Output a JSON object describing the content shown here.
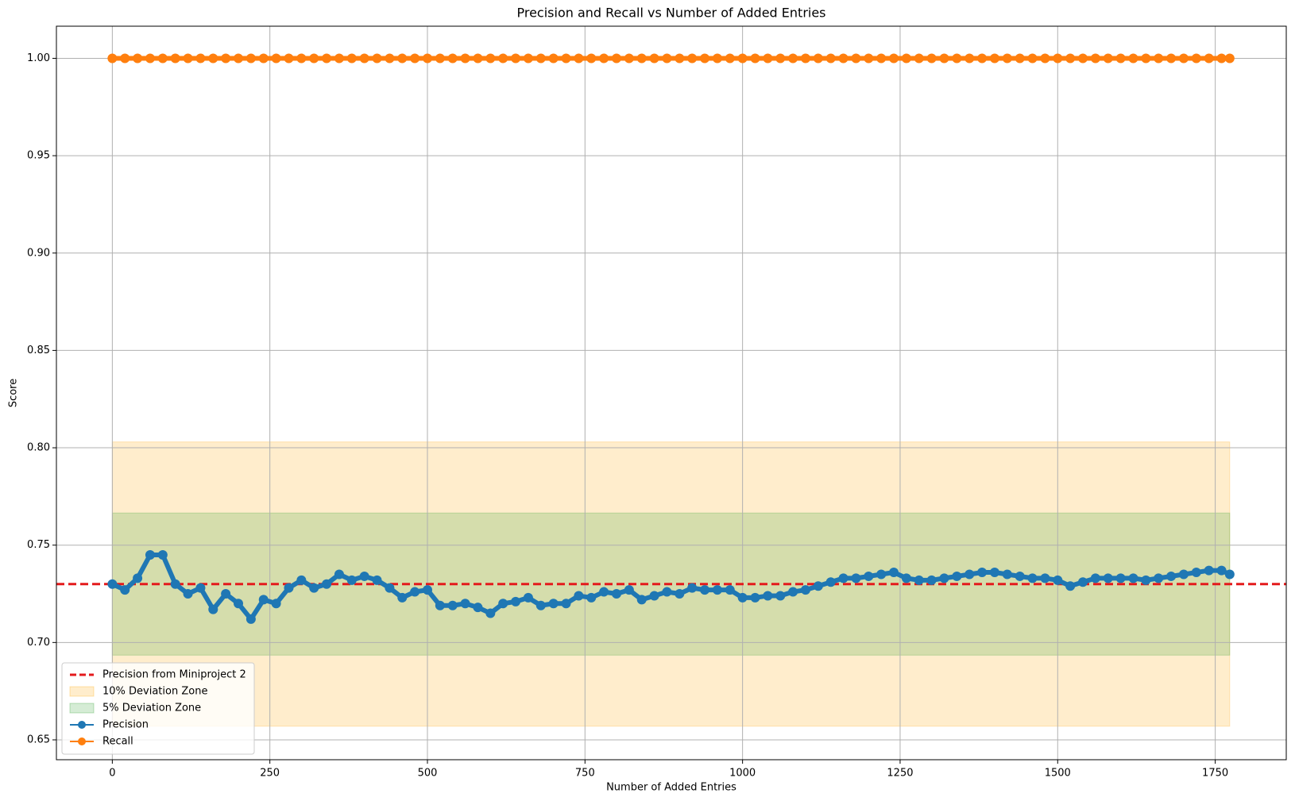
{
  "chart_data": {
    "type": "line",
    "title": "Precision and Recall vs Number of Added Entries",
    "x_label": "Number of Added Entries",
    "y_label": "Score",
    "x": [
      0,
      20,
      40,
      60,
      80,
      100,
      120,
      140,
      160,
      180,
      200,
      220,
      240,
      260,
      280,
      300,
      320,
      340,
      360,
      380,
      400,
      420,
      440,
      460,
      480,
      500,
      520,
      540,
      560,
      580,
      600,
      620,
      640,
      660,
      680,
      700,
      720,
      740,
      760,
      780,
      800,
      820,
      840,
      860,
      880,
      900,
      920,
      940,
      960,
      980,
      1000,
      1020,
      1040,
      1060,
      1080,
      1100,
      1120,
      1140,
      1160,
      1180,
      1200,
      1220,
      1240,
      1260,
      1280,
      1300,
      1320,
      1340,
      1360,
      1380,
      1400,
      1420,
      1440,
      1460,
      1480,
      1500,
      1520,
      1540,
      1560,
      1580,
      1600,
      1620,
      1640,
      1660,
      1680,
      1700,
      1720,
      1740,
      1760,
      1773
    ],
    "series": [
      {
        "name": "Precision",
        "color": "#1f77b4",
        "values": [
          0.73,
          0.727,
          0.733,
          0.745,
          0.745,
          0.73,
          0.725,
          0.728,
          0.717,
          0.725,
          0.72,
          0.712,
          0.722,
          0.72,
          0.728,
          0.732,
          0.728,
          0.73,
          0.735,
          0.732,
          0.734,
          0.732,
          0.728,
          0.723,
          0.726,
          0.727,
          0.719,
          0.719,
          0.72,
          0.718,
          0.715,
          0.72,
          0.721,
          0.723,
          0.719,
          0.72,
          0.72,
          0.724,
          0.723,
          0.726,
          0.725,
          0.727,
          0.722,
          0.724,
          0.726,
          0.725,
          0.728,
          0.727,
          0.727,
          0.727,
          0.723,
          0.723,
          0.724,
          0.724,
          0.726,
          0.727,
          0.729,
          0.731,
          0.733,
          0.733,
          0.734,
          0.735,
          0.736,
          0.733,
          0.732,
          0.732,
          0.733,
          0.734,
          0.735,
          0.736,
          0.736,
          0.735,
          0.734,
          0.733,
          0.733,
          0.732,
          0.729,
          0.731,
          0.733,
          0.733,
          0.733,
          0.733,
          0.732,
          0.733,
          0.734,
          0.735,
          0.736,
          0.737,
          0.737,
          0.735
        ]
      },
      {
        "name": "Recall",
        "color": "#ff7f0e",
        "values": [
          1,
          1,
          1,
          1,
          1,
          1,
          1,
          1,
          1,
          1,
          1,
          1,
          1,
          1,
          1,
          1,
          1,
          1,
          1,
          1,
          1,
          1,
          1,
          1,
          1,
          1,
          1,
          1,
          1,
          1,
          1,
          1,
          1,
          1,
          1,
          1,
          1,
          1,
          1,
          1,
          1,
          1,
          1,
          1,
          1,
          1,
          1,
          1,
          1,
          1,
          1,
          1,
          1,
          1,
          1,
          1,
          1,
          1,
          1,
          1,
          1,
          1,
          1,
          1,
          1,
          1,
          1,
          1,
          1,
          1,
          1,
          1,
          1,
          1,
          1,
          1,
          1,
          1,
          1,
          1,
          1,
          1,
          1,
          1,
          1,
          1,
          1,
          1,
          1,
          1
        ]
      }
    ],
    "reference": {
      "name": "Precision from Miniproject 2",
      "value": 0.73,
      "color": "#e41a1c"
    },
    "bands": [
      {
        "name": "10% Deviation Zone",
        "low": 0.657,
        "high": 0.803,
        "x0": 0,
        "x1": 1773,
        "color": "#ffa500"
      },
      {
        "name": "5% Deviation Zone",
        "low": 0.6935,
        "high": 0.7665,
        "x0": 0,
        "x1": 1773,
        "color": "#2ca02c"
      }
    ],
    "xlim": [
      -88.7,
      1862.7
    ],
    "ylim": [
      0.6398,
      1.0165
    ],
    "xticks": [
      0,
      250,
      500,
      750,
      1000,
      1250,
      1500,
      1750
    ],
    "yticks": [
      0.65,
      {
        "value": 0.7,
        "label": "0.70"
      },
      0.75,
      {
        "value": 0.8,
        "label": "0.80"
      },
      0.85,
      {
        "value": 0.9,
        "label": "0.90"
      },
      0.95,
      {
        "value": 1,
        "label": "1.00"
      }
    ],
    "grid": true,
    "legend": "lower-left"
  }
}
